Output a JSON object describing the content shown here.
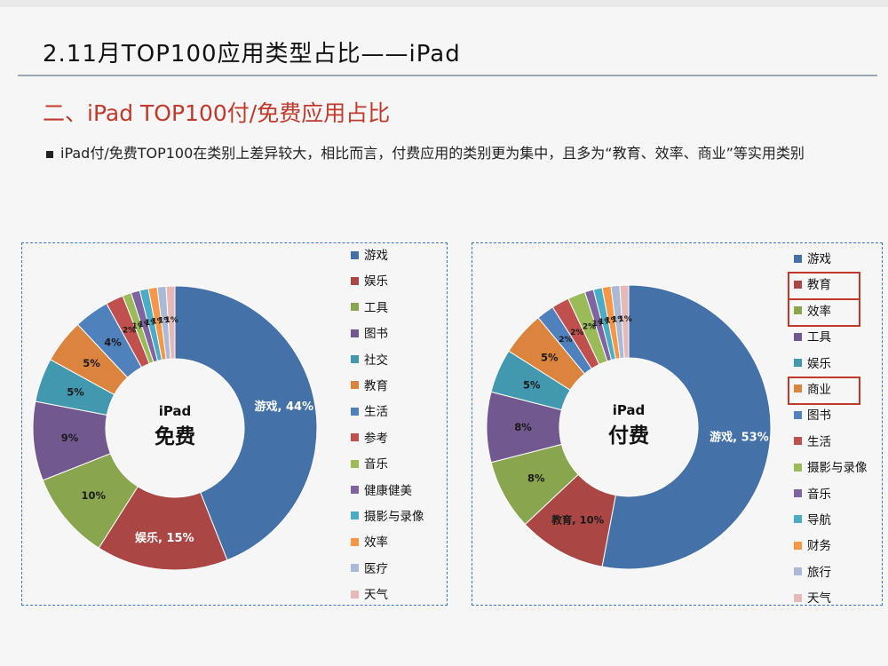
{
  "slide": {
    "title": "2.11月TOP100应用类型占比——iPad",
    "section_title": "二、iPad TOP100付/免费应用占比",
    "bullet": "iPad付/免费TOP100在类别上差异较大，相比而言，付费应用的类别更为集中，且多为“教育、效率、商业”等实用类别"
  },
  "chart_data": [
    {
      "type": "pie",
      "center_label": [
        "iPad",
        "免费"
      ],
      "title": "",
      "categories": [
        "游戏",
        "娱乐",
        "工具",
        "图书",
        "社交",
        "教育",
        "生活",
        "参考",
        "音乐",
        "健康健美",
        "摄影与录像",
        "效率",
        "医疗",
        "天气"
      ],
      "values": [
        44,
        15,
        10,
        9,
        5,
        5,
        4,
        2,
        1,
        1,
        1,
        1,
        1,
        1
      ],
      "data_labels": [
        "游戏, 44%",
        "娱乐, 15%",
        "10%",
        "9%",
        "5%",
        "5%",
        "4%",
        "2%",
        "1%",
        "1%",
        "1%",
        "1%",
        "1%",
        "1%"
      ],
      "colors": [
        "#4472A8",
        "#AA4643",
        "#89A54E",
        "#71588F",
        "#4198AF",
        "#DB843D",
        "#4F81BD",
        "#C0504D",
        "#9BBB59",
        "#8064A2",
        "#4BACC6",
        "#F79646",
        "#A9B9D6",
        "#E6B9B8"
      ],
      "legend_position": "right"
    },
    {
      "type": "pie",
      "center_label": [
        "iPad",
        "付费"
      ],
      "title": "",
      "categories": [
        "游戏",
        "教育",
        "效率",
        "工具",
        "娱乐",
        "商业",
        "图书",
        "生活",
        "摄影与录像",
        "音乐",
        "导航",
        "财务",
        "旅行",
        "天气"
      ],
      "values": [
        53,
        10,
        8,
        8,
        5,
        5,
        2,
        2,
        2,
        1,
        1,
        1,
        1,
        1
      ],
      "data_labels": [
        "游戏, 53%",
        "教育, 10%",
        "8%",
        "8%",
        "5%",
        "5%",
        "2%",
        "2%",
        "2%",
        "1%",
        "1%",
        "1%",
        "1%",
        "1%"
      ],
      "colors": [
        "#4472A8",
        "#AA4643",
        "#89A54E",
        "#71588F",
        "#4198AF",
        "#DB843D",
        "#4F81BD",
        "#C0504D",
        "#9BBB59",
        "#8064A2",
        "#4BACC6",
        "#F79646",
        "#A9B9D6",
        "#E6B9B8"
      ],
      "legend_position": "right",
      "highlighted_legend_items": [
        "教育",
        "效率",
        "商业"
      ]
    }
  ]
}
